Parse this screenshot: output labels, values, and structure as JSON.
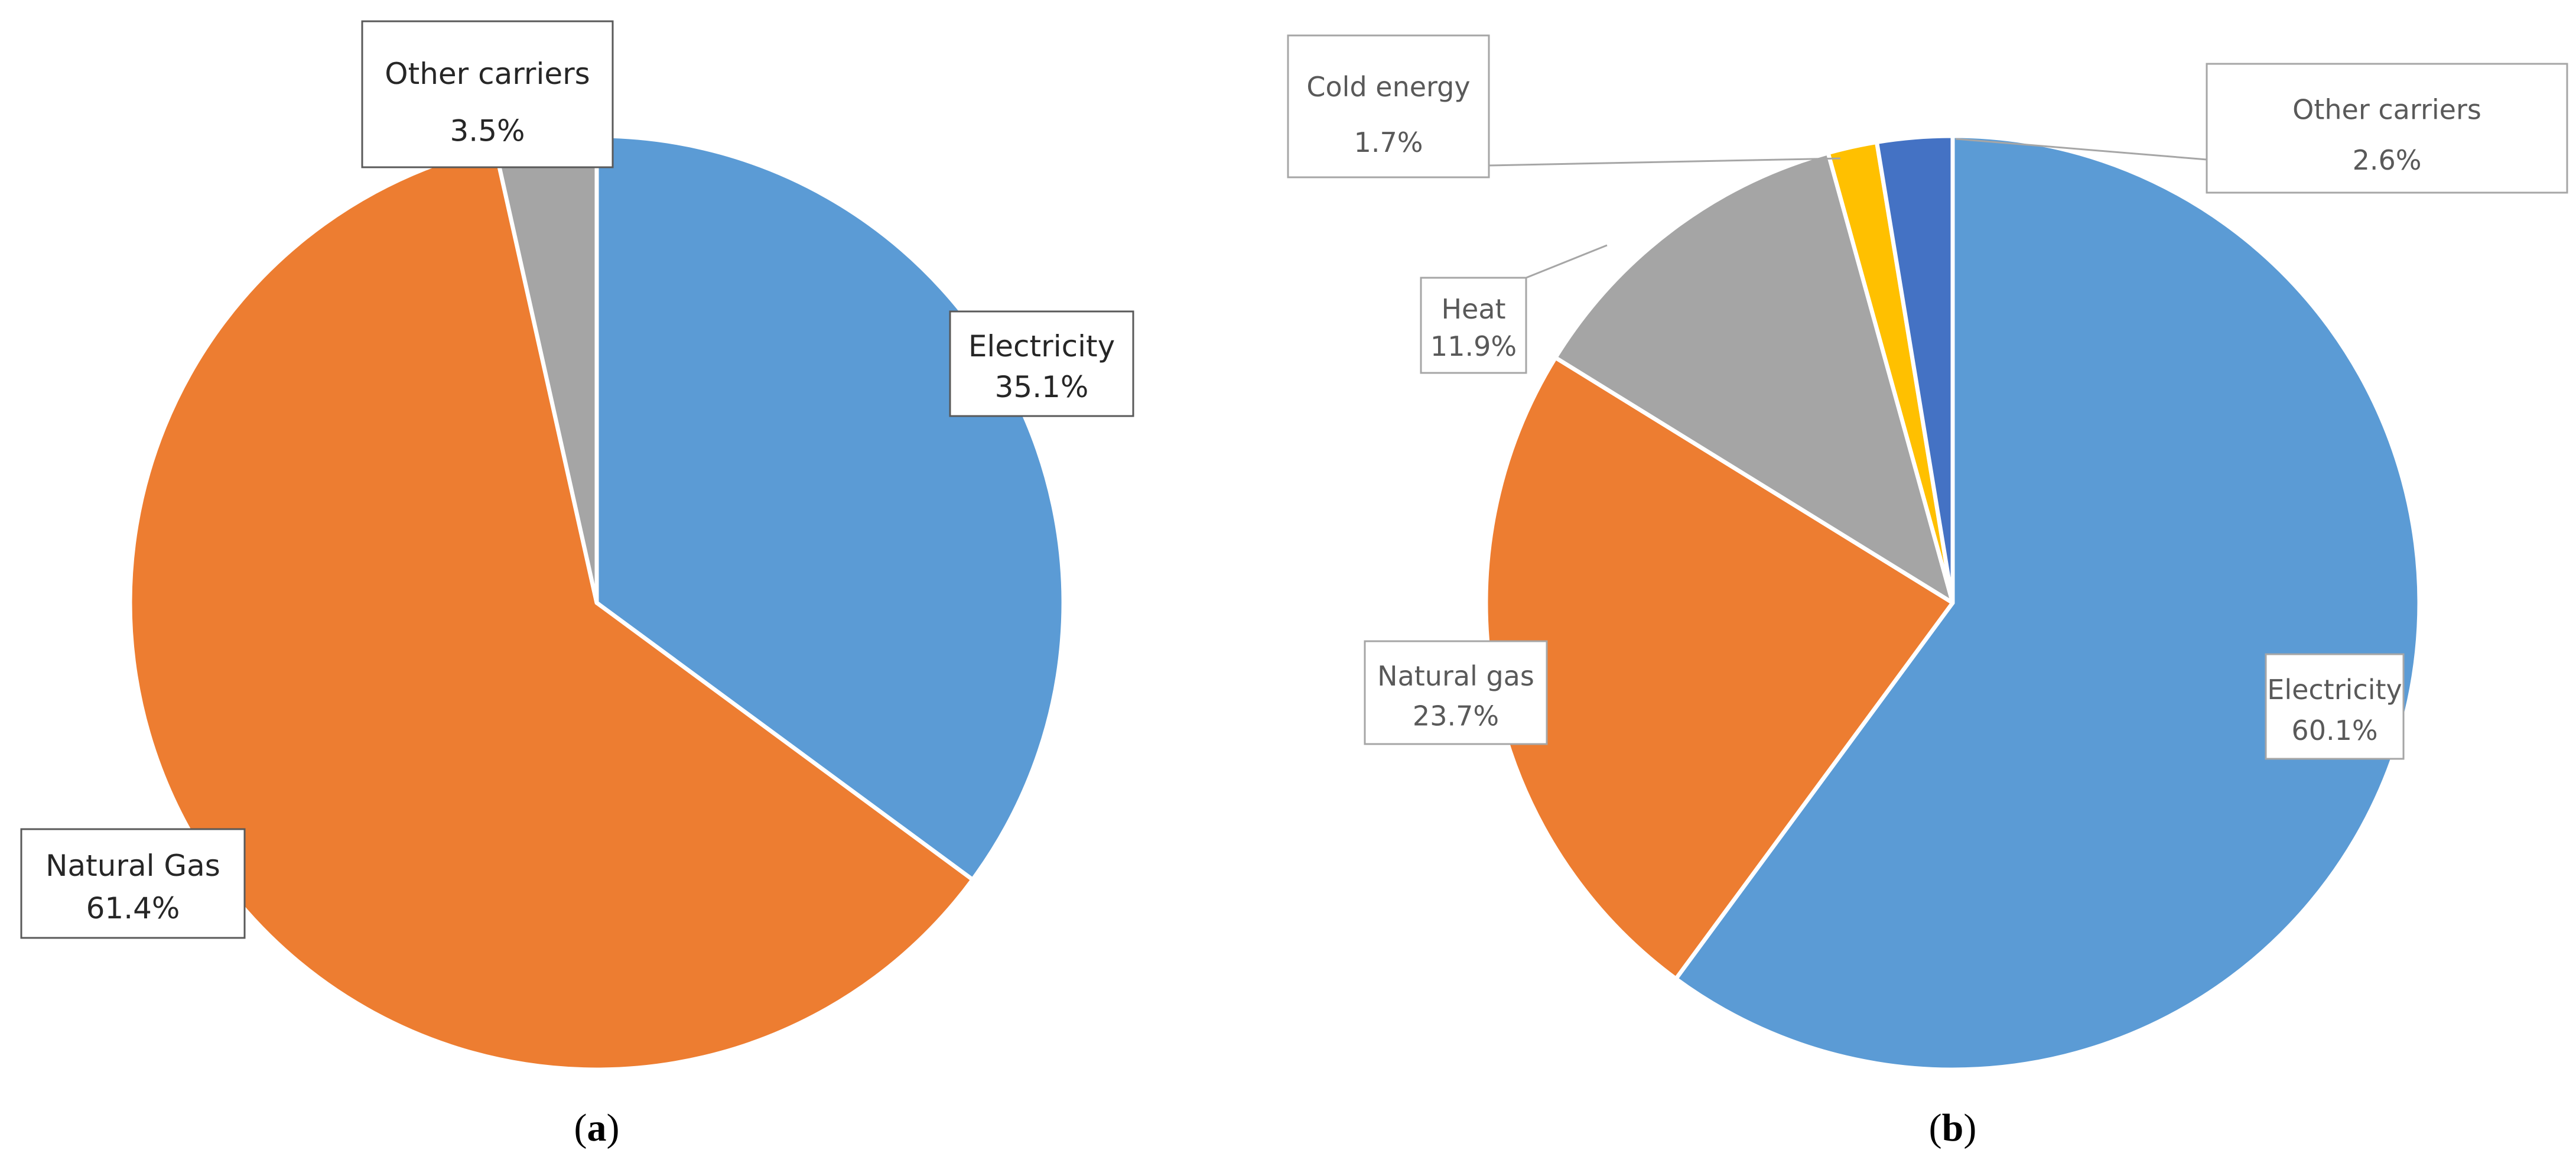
{
  "chart_data": [
    {
      "type": "pie",
      "caption": "a",
      "slices": [
        {
          "label": "Electricity",
          "value": 35.1,
          "value_label": "35.1%",
          "color": "#5b9bd5"
        },
        {
          "label": "Natural Gas",
          "value": 61.4,
          "value_label": "61.4%",
          "color": "#ed7d31"
        },
        {
          "label": "Other carriers",
          "value": 3.5,
          "value_label": "3.5%",
          "color": "#a5a5a5"
        }
      ]
    },
    {
      "type": "pie",
      "caption": "b",
      "slices": [
        {
          "label": "Electricity",
          "value": 60.1,
          "value_label": "60.1%",
          "color": "#5b9bd5"
        },
        {
          "label": "Natural gas",
          "value": 23.7,
          "value_label": "23.7%",
          "color": "#ed7d31"
        },
        {
          "label": "Heat",
          "value": 11.9,
          "value_label": "11.9%",
          "color": "#a5a5a5"
        },
        {
          "label": "Cold energy",
          "value": 1.7,
          "value_label": "1.7%",
          "color": "#ffc000"
        },
        {
          "label": "Other carriers",
          "value": 2.6,
          "value_label": "2.6%",
          "color": "#4472c4"
        }
      ]
    }
  ]
}
